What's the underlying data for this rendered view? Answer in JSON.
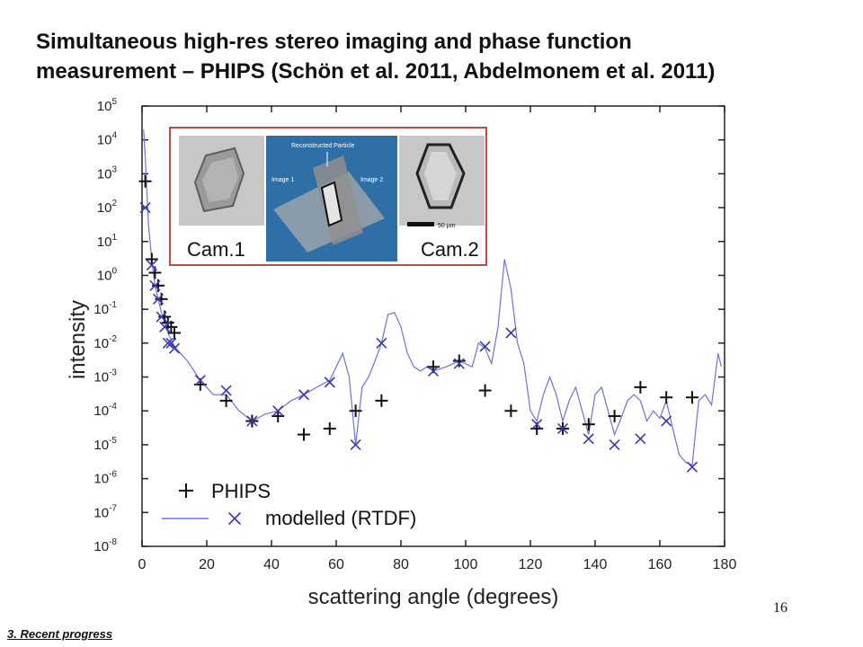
{
  "slide": {
    "title_line1": "Simultaneous high-res stereo imaging and phase function",
    "title_line2": "measurement – PHIPS (Schön et al. 2011, Abdelmonem et al. 2011)",
    "page_number": "16",
    "footer": "3. Recent progress"
  },
  "inset": {
    "cam1": "Cam.1",
    "cam2": "Cam.2",
    "reconstructed": "Reconstructed Particle",
    "image1": "Image 1",
    "image2": "Image 2",
    "scale": "50 µm",
    "border_color": "#c84a3c",
    "panel_color": "#2f6fa7"
  },
  "chart_data": {
    "type": "scatter",
    "xlabel": "scattering angle (degrees)",
    "ylabel": "intensity",
    "xlim": [
      0,
      180
    ],
    "ylim_log10": [
      -8,
      5
    ],
    "y_scale": "log",
    "x_ticks": [
      0,
      20,
      40,
      60,
      80,
      100,
      120,
      140,
      160,
      180
    ],
    "y_tick_exponents": [
      5,
      4,
      3,
      2,
      1,
      0,
      -1,
      -2,
      -3,
      -4,
      -5,
      -6,
      -7,
      -8
    ],
    "legend_position": "bottom-left",
    "series": [
      {
        "name": "PHIPS",
        "marker": "plus",
        "color": "#111111",
        "x": [
          1,
          3,
          4,
          5,
          6,
          7,
          8,
          9,
          10,
          18,
          26,
          34,
          42,
          50,
          58,
          66,
          74,
          90,
          98,
          106,
          114,
          122,
          130,
          138,
          146,
          154,
          162,
          170
        ],
        "y": [
          600,
          3,
          1.2,
          0.5,
          0.2,
          0.06,
          0.04,
          0.03,
          0.02,
          0.0006,
          0.0002,
          5e-05,
          7e-05,
          2e-05,
          3e-05,
          0.0001,
          0.0002,
          0.002,
          0.003,
          0.0004,
          0.0001,
          3e-05,
          3e-05,
          4e-05,
          7e-05,
          0.0005,
          0.00025,
          0.00025
        ]
      },
      {
        "name": "modelled (RTDF)",
        "marker": "x",
        "color": "#3a3ab8",
        "x": [
          1,
          3,
          4,
          5,
          6,
          7,
          8,
          9,
          10,
          18,
          26,
          34,
          42,
          50,
          58,
          66,
          74,
          90,
          98,
          106,
          114,
          122,
          130,
          138,
          146,
          154,
          162,
          170
        ],
        "y": [
          100,
          2,
          0.5,
          0.2,
          0.06,
          0.03,
          0.01,
          0.01,
          0.007,
          0.0008,
          0.0004,
          5e-05,
          0.0001,
          0.0003,
          0.0007,
          1e-05,
          0.01,
          0.0015,
          0.0025,
          0.008,
          0.02,
          4e-05,
          3e-05,
          1.5e-05,
          1e-05,
          1.5e-05,
          5e-05,
          2.2e-06
        ]
      },
      {
        "name": "modelled (RTDF) curve",
        "marker": "line",
        "color": "#6f72d8",
        "x": [
          0.5,
          1,
          1.5,
          2,
          3,
          4,
          5,
          6,
          8,
          10,
          14,
          18,
          22,
          26,
          30,
          34,
          38,
          42,
          46,
          50,
          54,
          58,
          62,
          64,
          66,
          68,
          70,
          72,
          74,
          76,
          78,
          80,
          82,
          84,
          86,
          88,
          90,
          94,
          98,
          102,
          104,
          106,
          108,
          110,
          112,
          114,
          116,
          118,
          120,
          122,
          124,
          126,
          128,
          130,
          132,
          134,
          136,
          138,
          140,
          142,
          144,
          146,
          148,
          150,
          152,
          154,
          156,
          158,
          160,
          162,
          164,
          166,
          168,
          170,
          172,
          174,
          176,
          178,
          179
        ],
        "y": [
          20000,
          3000,
          300,
          30,
          3,
          0.5,
          0.2,
          0.08,
          0.02,
          0.008,
          0.003,
          0.0008,
          0.0003,
          0.0003,
          0.0001,
          5e-05,
          8e-05,
          0.0001,
          0.0002,
          0.0003,
          0.0005,
          0.0008,
          0.005,
          0.001,
          1e-05,
          0.0005,
          0.001,
          0.003,
          0.01,
          0.07,
          0.08,
          0.03,
          0.005,
          0.002,
          0.0015,
          0.002,
          0.0015,
          0.002,
          0.003,
          0.002,
          0.01,
          0.007,
          0.0025,
          0.03,
          3,
          0.4,
          0.01,
          0.0025,
          0.0001,
          5e-05,
          0.0003,
          0.001,
          0.0003,
          5e-05,
          0.0002,
          0.0005,
          0.0001,
          2e-05,
          0.0003,
          0.0005,
          0.0001,
          2e-05,
          6e-05,
          0.0002,
          0.0003,
          0.0002,
          5e-05,
          0.0001,
          6e-05,
          0.0002,
          3e-05,
          5e-06,
          3e-06,
          2.5e-06,
          0.0002,
          0.0003,
          0.00015,
          0.005,
          0.002
        ]
      }
    ]
  }
}
